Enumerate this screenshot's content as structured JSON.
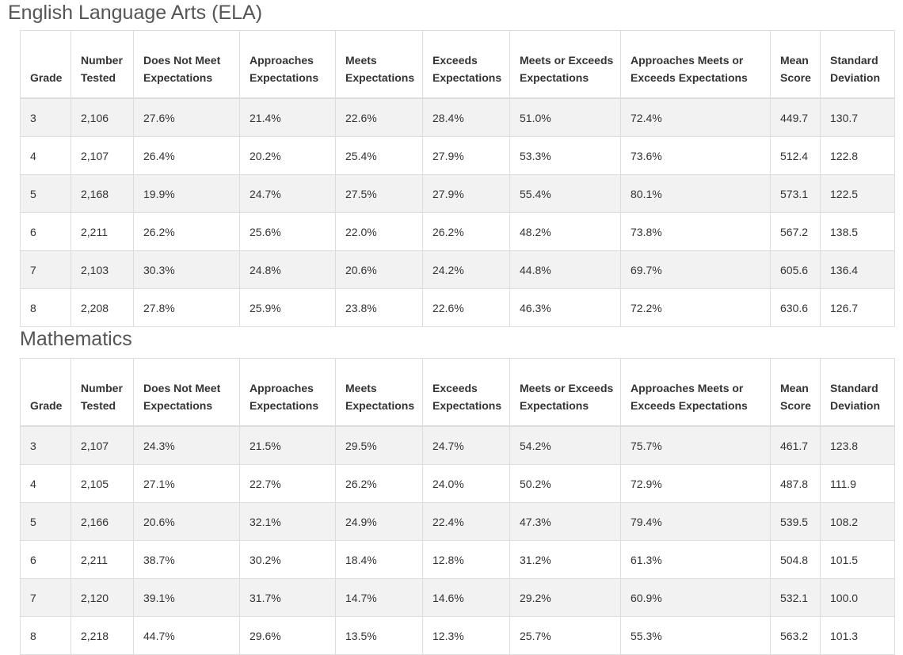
{
  "sections": [
    {
      "title": "English Language Arts (ELA)",
      "headers": [
        "Grade",
        "Number Tested",
        "Does Not Meet Expectations",
        "Approaches Expectations",
        "Meets Expectations",
        "Exceeds Expectations",
        "Meets or Exceeds Expectations",
        "Approaches Meets or Exceeds Expectations",
        "Mean Score",
        "Standard Deviation"
      ],
      "rows": [
        [
          "3",
          "2,106",
          "27.6%",
          "21.4%",
          "22.6%",
          "28.4%",
          "51.0%",
          "72.4%",
          "449.7",
          "130.7"
        ],
        [
          "4",
          "2,107",
          "26.4%",
          "20.2%",
          "25.4%",
          "27.9%",
          "53.3%",
          "73.6%",
          "512.4",
          "122.8"
        ],
        [
          "5",
          "2,168",
          "19.9%",
          "24.7%",
          "27.5%",
          "27.9%",
          "55.4%",
          "80.1%",
          "573.1",
          "122.5"
        ],
        [
          "6",
          "2,211",
          "26.2%",
          "25.6%",
          "22.0%",
          "26.2%",
          "48.2%",
          "73.8%",
          "567.2",
          "138.5"
        ],
        [
          "7",
          "2,103",
          "30.3%",
          "24.8%",
          "20.6%",
          "24.2%",
          "44.8%",
          "69.7%",
          "605.6",
          "136.4"
        ],
        [
          "8",
          "2,208",
          "27.8%",
          "25.9%",
          "23.8%",
          "22.6%",
          "46.3%",
          "72.2%",
          "630.6",
          "126.7"
        ]
      ]
    },
    {
      "title": "Mathematics",
      "headers": [
        "Grade",
        "Number Tested",
        "Does Not Meet Expectations",
        "Approaches Expectations",
        "Meets Expectations",
        "Exceeds Expectations",
        "Meets or Exceeds Expectations",
        "Approaches Meets or Exceeds Expectations",
        "Mean Score",
        "Standard Deviation"
      ],
      "rows": [
        [
          "3",
          "2,107",
          "24.3%",
          "21.5%",
          "29.5%",
          "24.7%",
          "54.2%",
          "75.7%",
          "461.7",
          "123.8"
        ],
        [
          "4",
          "2,105",
          "27.1%",
          "22.7%",
          "26.2%",
          "24.0%",
          "50.2%",
          "72.9%",
          "487.8",
          "111.9"
        ],
        [
          "5",
          "2,166",
          "20.6%",
          "32.1%",
          "24.9%",
          "22.4%",
          "47.3%",
          "79.4%",
          "539.5",
          "108.2"
        ],
        [
          "6",
          "2,211",
          "38.7%",
          "30.2%",
          "18.4%",
          "12.8%",
          "31.2%",
          "61.3%",
          "504.8",
          "101.5"
        ],
        [
          "7",
          "2,120",
          "39.1%",
          "31.7%",
          "14.7%",
          "14.6%",
          "29.2%",
          "60.9%",
          "532.1",
          "100.0"
        ],
        [
          "8",
          "2,218",
          "44.7%",
          "29.6%",
          "13.5%",
          "12.3%",
          "25.7%",
          "55.3%",
          "563.2",
          "101.3"
        ]
      ]
    }
  ]
}
